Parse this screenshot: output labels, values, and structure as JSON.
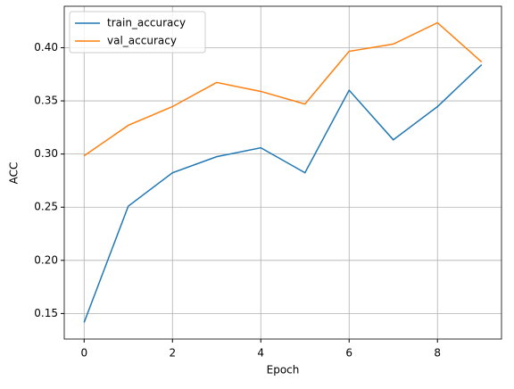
{
  "chart_data": {
    "type": "line",
    "xlabel": "Epoch",
    "ylabel": "ACC",
    "x": [
      0,
      1,
      2,
      3,
      4,
      5,
      6,
      7,
      8,
      9
    ],
    "series": [
      {
        "name": "train_accuracy",
        "color": "#1f77b4",
        "values": [
          0.1416,
          0.251,
          0.2824,
          0.2975,
          0.3059,
          0.2824,
          0.36,
          0.3134,
          0.3446,
          0.384
        ]
      },
      {
        "name": "val_accuracy",
        "color": "#ff7f0e",
        "values": [
          0.2983,
          0.327,
          0.3446,
          0.3673,
          0.3589,
          0.347,
          0.3966,
          0.4034,
          0.4235,
          0.3866
        ]
      }
    ],
    "xlim": [
      -0.45,
      9.45
    ],
    "xticks": [
      0,
      2,
      4,
      6,
      8
    ],
    "ylim": [
      0.126,
      0.439
    ],
    "yticks": [
      0.15,
      {
        "value": 0.2,
        "label": "0.20"
      },
      0.25,
      {
        "value": 0.3,
        "label": "0.30"
      },
      0.35,
      {
        "value": 0.4,
        "label": "0.40"
      }
    ],
    "grid": true,
    "legend": "upper left"
  }
}
